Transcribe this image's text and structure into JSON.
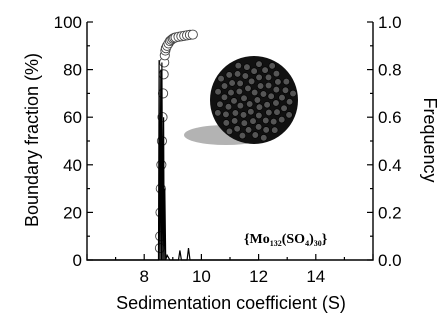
{
  "chart_data": {
    "type": "line",
    "title": "",
    "xlabel": "Sedimentation coefficient (S)",
    "ylabel_left": "Boundary fraction (%)",
    "ylabel_right": "Frequency",
    "xlim": [
      6,
      16
    ],
    "ylim_left": [
      0,
      100
    ],
    "ylim_right": [
      0,
      1.0
    ],
    "x_ticks": [
      8,
      10,
      12,
      14
    ],
    "y_left_ticks": [
      0,
      20,
      40,
      60,
      80,
      100
    ],
    "y_right_ticks": [
      "0.0",
      "0.2",
      "0.4",
      "0.6",
      "0.8",
      "1.0"
    ],
    "grid": false,
    "series": [
      {
        "axis": "left",
        "style": "open-circles",
        "x": [
          8.55,
          8.56,
          8.57,
          8.58,
          8.6,
          8.62,
          8.64,
          8.66,
          8.68,
          8.7,
          8.72,
          8.74,
          8.76,
          8.8,
          8.85,
          8.9,
          8.95,
          9.0,
          9.05,
          9.1,
          9.2,
          9.3,
          9.4,
          9.5,
          9.6,
          9.7
        ],
        "y": [
          5,
          10,
          20,
          30,
          40,
          50,
          60,
          70,
          78,
          83,
          86,
          88,
          89,
          90,
          91,
          92,
          92.5,
          93,
          93.3,
          93.5,
          93.8,
          94,
          94.2,
          94.4,
          94.6,
          94.7
        ]
      },
      {
        "axis": "right",
        "style": "line",
        "x": [
          6.0,
          8.4,
          8.5,
          8.52,
          8.55,
          8.58,
          8.6,
          8.62,
          8.65,
          8.68,
          8.7,
          8.72,
          8.75,
          8.8,
          8.9,
          9.0,
          9.2,
          9.25,
          9.3,
          9.5,
          9.55,
          9.6,
          12.0
        ],
        "y": [
          0.0,
          0.0,
          0.0,
          0.84,
          0.0,
          0.8,
          0.0,
          0.83,
          0.0,
          0.6,
          0.0,
          0.3,
          0.0,
          0.02,
          0.0,
          0.0,
          0.0,
          0.04,
          0.0,
          0.0,
          0.05,
          0.0,
          0.0
        ]
      }
    ],
    "annotation": {
      "prefix": "{Mo",
      "sub1": "132",
      "mid": "(SO",
      "sub2": "4",
      "suffix": ")",
      "sub3": "30",
      "close": "}"
    }
  }
}
